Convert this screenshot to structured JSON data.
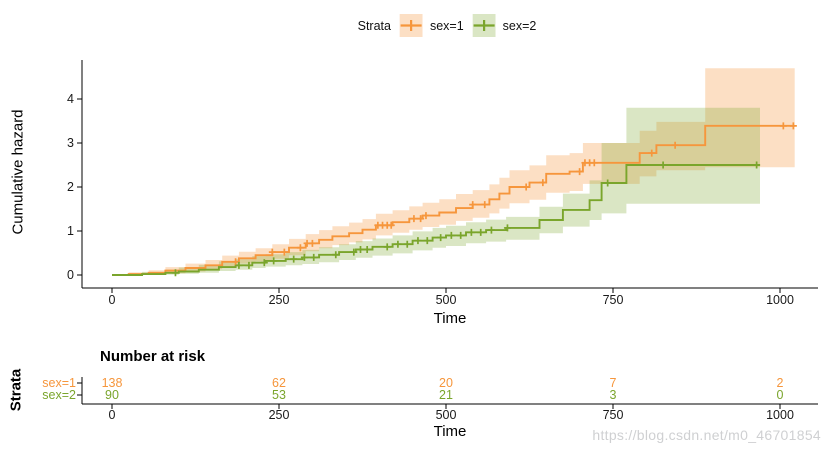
{
  "legend": {
    "title": "Strata",
    "items": [
      {
        "label": "sex=1",
        "color": "#F6963C",
        "fill": "rgba(246,150,60,0.30)"
      },
      {
        "label": "sex=2",
        "color": "#7AA52C",
        "fill": "rgba(122,165,44,0.28)"
      }
    ]
  },
  "axes": {
    "y_label": "Cumulative hazard",
    "x_label": "Time",
    "y_ticks": [
      0,
      1,
      2,
      3,
      4
    ],
    "x_ticks": [
      0,
      250,
      500,
      750,
      1000
    ]
  },
  "risk_table": {
    "title": "Number at risk",
    "axis_title": "Strata",
    "x_label": "Time",
    "x_ticks": [
      0,
      250,
      500,
      750,
      1000
    ],
    "rows": [
      {
        "label": "sex=1",
        "color": "#F6963C",
        "counts": [
          "138",
          "62",
          "20",
          "7",
          "2"
        ]
      },
      {
        "label": "sex=2",
        "color": "#7AA52C",
        "counts": [
          "90",
          "53",
          "21",
          "3",
          "0"
        ]
      }
    ]
  },
  "watermark": "https://blog.csdn.net/m0_46701854",
  "chart_data": {
    "type": "line",
    "style": "step",
    "title": "",
    "xlabel": "Time",
    "ylabel": "Cumulative hazard",
    "xlim": [
      -45,
      1057
    ],
    "ylim": [
      -0.3,
      4.89
    ],
    "x_ticks": [
      0,
      250,
      500,
      750,
      1000
    ],
    "y_ticks": [
      0,
      1,
      2,
      3,
      4
    ],
    "grid": false,
    "legend_position": "top",
    "series": [
      {
        "name": "sex=1",
        "color": "#F6963C",
        "band_color": "rgba(246,150,60,0.30)",
        "points": [
          [
            0,
            0,
            0,
            0
          ],
          [
            25,
            0.02,
            0,
            0.06
          ],
          [
            55,
            0.05,
            0.01,
            0.11
          ],
          [
            80,
            0.1,
            0.04,
            0.18
          ],
          [
            110,
            0.16,
            0.08,
            0.26
          ],
          [
            140,
            0.22,
            0.13,
            0.34
          ],
          [
            165,
            0.3,
            0.19,
            0.44
          ],
          [
            190,
            0.38,
            0.26,
            0.53
          ],
          [
            215,
            0.45,
            0.31,
            0.61
          ],
          [
            240,
            0.52,
            0.37,
            0.7
          ],
          [
            265,
            0.62,
            0.45,
            0.82
          ],
          [
            290,
            0.72,
            0.54,
            0.93
          ],
          [
            310,
            0.8,
            0.61,
            1.02
          ],
          [
            330,
            0.88,
            0.68,
            1.11
          ],
          [
            355,
            0.95,
            0.74,
            1.19
          ],
          [
            375,
            1.03,
            0.81,
            1.27
          ],
          [
            395,
            1.13,
            0.9,
            1.39
          ],
          [
            420,
            1.2,
            0.96,
            1.47
          ],
          [
            445,
            1.28,
            1.03,
            1.56
          ],
          [
            465,
            1.35,
            1.09,
            1.64
          ],
          [
            490,
            1.42,
            1.14,
            1.72
          ],
          [
            515,
            1.52,
            1.23,
            1.84
          ],
          [
            540,
            1.6,
            1.3,
            1.93
          ],
          [
            565,
            1.72,
            1.4,
            2.06
          ],
          [
            580,
            1.85,
            1.51,
            2.21
          ],
          [
            595,
            2.0,
            1.63,
            2.38
          ],
          [
            625,
            2.1,
            1.71,
            2.49
          ],
          [
            650,
            2.3,
            1.87,
            2.72
          ],
          [
            685,
            2.35,
            1.91,
            2.77
          ],
          [
            705,
            2.55,
            2.07,
            3.0
          ],
          [
            790,
            2.77,
            2.24,
            3.28
          ],
          [
            815,
            2.95,
            2.38,
            3.48
          ],
          [
            888,
            3.39,
            2.45,
            4.7
          ],
          [
            1022,
            3.39,
            2.45,
            4.7
          ]
        ],
        "censor_times": [
          185,
          240,
          258,
          282,
          292,
          300,
          398,
          405,
          412,
          418,
          452,
          462,
          470,
          540,
          558,
          620,
          645,
          700,
          708,
          715,
          722,
          808,
          843,
          1005,
          1020
        ]
      },
      {
        "name": "sex=2",
        "color": "#7AA52C",
        "band_color": "rgba(122,165,44,0.28)",
        "points": [
          [
            0,
            0,
            0,
            0
          ],
          [
            45,
            0.02,
            0,
            0.07
          ],
          [
            80,
            0.05,
            0.01,
            0.12
          ],
          [
            100,
            0.08,
            0.03,
            0.17
          ],
          [
            130,
            0.12,
            0.05,
            0.23
          ],
          [
            160,
            0.18,
            0.09,
            0.31
          ],
          [
            185,
            0.22,
            0.12,
            0.36
          ],
          [
            210,
            0.28,
            0.16,
            0.43
          ],
          [
            230,
            0.32,
            0.19,
            0.47
          ],
          [
            260,
            0.36,
            0.22,
            0.52
          ],
          [
            285,
            0.4,
            0.25,
            0.57
          ],
          [
            310,
            0.46,
            0.29,
            0.63
          ],
          [
            340,
            0.52,
            0.34,
            0.7
          ],
          [
            365,
            0.58,
            0.39,
            0.77
          ],
          [
            390,
            0.64,
            0.44,
            0.83
          ],
          [
            420,
            0.7,
            0.49,
            0.9
          ],
          [
            450,
            0.78,
            0.56,
            0.99
          ],
          [
            480,
            0.85,
            0.62,
            1.07
          ],
          [
            500,
            0.9,
            0.66,
            1.12
          ],
          [
            530,
            0.97,
            0.72,
            1.2
          ],
          [
            560,
            1.02,
            0.76,
            1.26
          ],
          [
            590,
            1.07,
            0.8,
            1.32
          ],
          [
            640,
            1.25,
            0.95,
            1.55
          ],
          [
            675,
            1.48,
            1.1,
            1.85
          ],
          [
            715,
            1.7,
            1.25,
            2.15
          ],
          [
            733,
            2.09,
            1.4,
            3.0
          ],
          [
            770,
            2.5,
            1.62,
            3.8
          ],
          [
            970,
            2.5,
            1.62,
            3.8
          ]
        ],
        "censor_times": [
          95,
          190,
          205,
          228,
          242,
          272,
          288,
          302,
          335,
          362,
          372,
          382,
          412,
          428,
          442,
          458,
          472,
          492,
          508,
          522,
          538,
          552,
          568,
          592,
          742,
          825,
          965
        ]
      }
    ]
  }
}
